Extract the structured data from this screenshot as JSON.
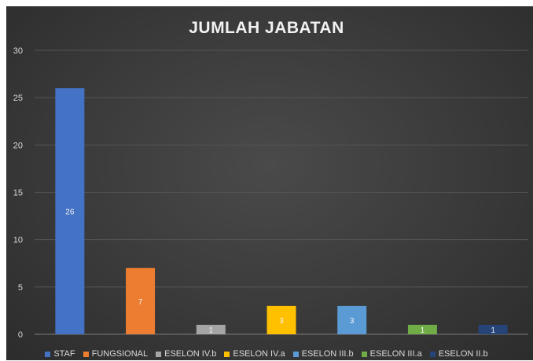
{
  "chart_data": {
    "type": "bar",
    "title": "JUMLAH JABATAN",
    "categories": [
      "STAF",
      "FUNGSIONAL",
      "ESELON IV.b",
      "ESELON IV.a",
      "ESELON III.b",
      "ESELON III.a",
      "ESELON II.b"
    ],
    "values": [
      26,
      7,
      1,
      3,
      3,
      1,
      1
    ],
    "colors": [
      "#4472C4",
      "#ED7D31",
      "#A5A5A5",
      "#FFC000",
      "#5B9BD5",
      "#70AD47",
      "#264478"
    ],
    "data_labels": [
      "26",
      "7",
      "1",
      "3",
      "3",
      "1",
      "1"
    ],
    "ylim": [
      0,
      30
    ],
    "yticks": [
      "0",
      "5",
      "10",
      "15",
      "20",
      "25",
      "30"
    ],
    "grid": true,
    "legend_position": "bottom"
  }
}
